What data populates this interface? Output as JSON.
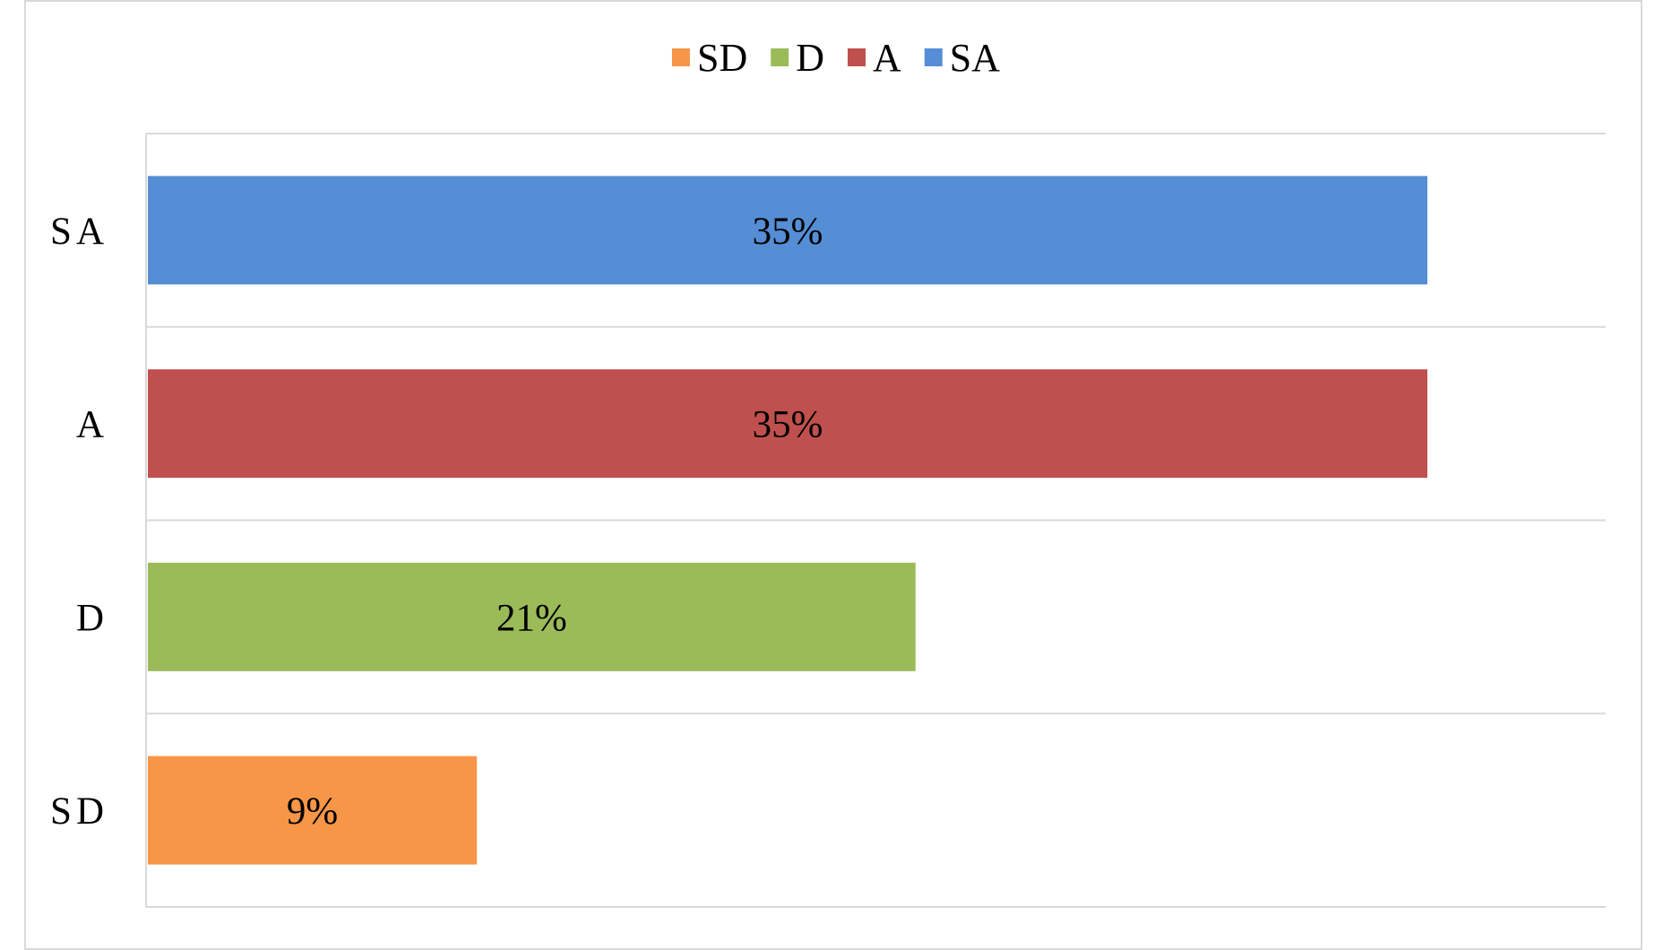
{
  "chart_data": {
    "type": "bar",
    "orientation": "horizontal",
    "categories": [
      "SA",
      "A",
      "D",
      "SD"
    ],
    "values": [
      35,
      35,
      21,
      9
    ],
    "value_unit": "%",
    "data_labels": [
      "35%",
      "35%",
      "21%",
      "9%"
    ],
    "colors": [
      "#558ed5",
      "#c0504d",
      "#9bbb59",
      "#f79646"
    ],
    "legend": [
      {
        "name": "SD",
        "color": "#f79646"
      },
      {
        "name": "D",
        "color": "#9bbb59"
      },
      {
        "name": "A",
        "color": "#c0504d"
      },
      {
        "name": "SA",
        "color": "#558ed5"
      }
    ],
    "legend_position": "top",
    "title": "",
    "xlabel": "",
    "ylabel": "",
    "xlim": [
      0,
      40
    ],
    "grid": "horizontal lines between categories"
  }
}
